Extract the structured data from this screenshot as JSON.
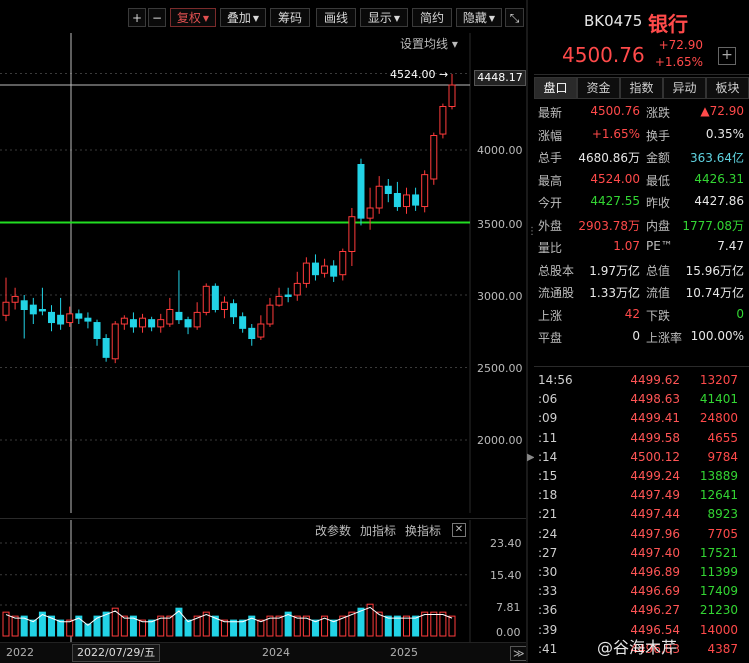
{
  "toolbar": {
    "plus": "+",
    "minus": "−",
    "fuquan": "复权",
    "diejia": "叠加",
    "chouma": "筹码",
    "huaxian": "画线",
    "xianshi": "显示",
    "jianyue": "简约",
    "yincang": "隐藏",
    "fullscreen": "⤡"
  },
  "chart": {
    "setting_label": "设置均线 ▾",
    "max_label": "4524.00",
    "cursor_value": "4448.17",
    "yticks": [
      "4000.00",
      "3500.00",
      "3000.00",
      "2500.00",
      "2000.00"
    ],
    "yvalues": [
      4000,
      3500,
      3000,
      2500,
      2000
    ],
    "support_level": 3500,
    "price_top": 4524,
    "colors": {
      "up": "#ff3b3b",
      "down": "#22d3e6",
      "ma_support": "#22dd22"
    }
  },
  "chart_data": {
    "type": "candlestick",
    "x_labels": [
      "2022",
      "2024",
      "2025"
    ],
    "ylim": [
      1500,
      4600
    ],
    "candles": [
      [
        2860,
        2950,
        3120,
        2820
      ],
      [
        2950,
        2990,
        3050,
        2900
      ],
      [
        2960,
        2900,
        3000,
        2700
      ],
      [
        2930,
        2870,
        2980,
        2800
      ],
      [
        2900,
        2890,
        3050,
        2860
      ],
      [
        2880,
        2810,
        2930,
        2750
      ],
      [
        2860,
        2800,
        2980,
        2760
      ],
      [
        2810,
        2870,
        2920,
        2780
      ],
      [
        2870,
        2840,
        2900,
        2800
      ],
      [
        2840,
        2820,
        2880,
        2770
      ],
      [
        2810,
        2700,
        2830,
        2650
      ],
      [
        2700,
        2570,
        2730,
        2540
      ],
      [
        2560,
        2800,
        2820,
        2530
      ],
      [
        2800,
        2840,
        2860,
        2760
      ],
      [
        2830,
        2780,
        2880,
        2740
      ],
      [
        2780,
        2840,
        2870,
        2740
      ],
      [
        2830,
        2780,
        2850,
        2750
      ],
      [
        2780,
        2830,
        2870,
        2740
      ],
      [
        2800,
        2900,
        2980,
        2780
      ],
      [
        2880,
        2830,
        3170,
        2800
      ],
      [
        2830,
        2780,
        2850,
        2730
      ],
      [
        2780,
        2880,
        2950,
        2760
      ],
      [
        2880,
        3060,
        3080,
        2860
      ],
      [
        3060,
        2900,
        3080,
        2880
      ],
      [
        2900,
        2950,
        2990,
        2840
      ],
      [
        2940,
        2850,
        2970,
        2800
      ],
      [
        2850,
        2770,
        2880,
        2740
      ],
      [
        2770,
        2700,
        2800,
        2650
      ],
      [
        2710,
        2800,
        2860,
        2690
      ],
      [
        2800,
        2930,
        2980,
        2780
      ],
      [
        2930,
        2990,
        3050,
        2920
      ],
      [
        3000,
        2990,
        3050,
        2950
      ],
      [
        3000,
        3080,
        3160,
        2960
      ],
      [
        3080,
        3220,
        3260,
        3050
      ],
      [
        3220,
        3140,
        3280,
        3100
      ],
      [
        3150,
        3200,
        3250,
        3120
      ],
      [
        3200,
        3130,
        3240,
        3090
      ],
      [
        3140,
        3300,
        3320,
        3100
      ],
      [
        3300,
        3540,
        3600,
        3200
      ],
      [
        3900,
        3530,
        3940,
        3480
      ],
      [
        3530,
        3600,
        3740,
        3450
      ],
      [
        3600,
        3750,
        3820,
        3560
      ],
      [
        3750,
        3700,
        3800,
        3640
      ],
      [
        3700,
        3610,
        3780,
        3580
      ],
      [
        3610,
        3690,
        3740,
        3560
      ],
      [
        3690,
        3620,
        3740,
        3580
      ],
      [
        3610,
        3830,
        3860,
        3570
      ],
      [
        3800,
        4100,
        4120,
        3760
      ],
      [
        4110,
        4300,
        4320,
        4080
      ],
      [
        4300,
        4448,
        4524,
        4280
      ]
    ],
    "volume_ylim": [
      0,
      23.4
    ],
    "volume_ticks": [
      "23.40",
      "15.40",
      "7.81",
      "0.00"
    ],
    "volumes": [
      6,
      5,
      5,
      4,
      6,
      5,
      4,
      4,
      5,
      3,
      5,
      6,
      7,
      5,
      5,
      4,
      4,
      5,
      5,
      7,
      4,
      5,
      6,
      5,
      4,
      4,
      4,
      5,
      4,
      5,
      5,
      6,
      5,
      5,
      4,
      5,
      4,
      5,
      6,
      7,
      8,
      6,
      5,
      5,
      5,
      5,
      6,
      6,
      6,
      5
    ]
  },
  "vol_panel": {
    "gaicanshu": "改参数",
    "jiazhibiao": "加指标",
    "huanzhibiao": "换指标",
    "close": "✕"
  },
  "date_axis": {
    "y2022": "2022",
    "cursor": "2022/07/29/五",
    "y2024": "2024",
    "y2025": "2025",
    "nav": "≫"
  },
  "right": {
    "code": "BK0475",
    "name": "银行",
    "price": "4500.76",
    "chg": "+72.90",
    "chgp": "+1.65%",
    "add": "+",
    "tabs": [
      "盘口",
      "资金",
      "指数",
      "异动",
      "板块"
    ],
    "quotes": [
      {
        "l1": "最新",
        "v1": "4500.76",
        "c1": "red",
        "l2": "涨跌",
        "v2": "▲72.90",
        "c2": "red"
      },
      {
        "l1": "涨幅",
        "v1": "+1.65%",
        "c1": "red",
        "l2": "换手",
        "v2": "0.35%",
        "c2": "white"
      },
      {
        "l1": "总手",
        "v1": "4680.86万",
        "c1": "white",
        "l2": "金额",
        "v2": "363.64亿",
        "c2": "cyan"
      },
      {
        "l1": "最高",
        "v1": "4524.00",
        "c1": "red",
        "l2": "最低",
        "v2": "4426.31",
        "c2": "green"
      },
      {
        "l1": "今开",
        "v1": "4427.55",
        "c1": "green",
        "l2": "昨收",
        "v2": "4427.86",
        "c2": "white"
      },
      {
        "l1": "外盘",
        "v1": "2903.78万",
        "c1": "red",
        "l2": "内盘",
        "v2": "1777.08万",
        "c2": "green"
      },
      {
        "l1": "量比",
        "v1": "1.07",
        "c1": "red",
        "l2": "PE™",
        "v2": "7.47",
        "c2": "white"
      },
      {
        "l1": "总股本",
        "v1": "1.97万亿",
        "c1": "white",
        "l2": "总值",
        "v2": "15.96万亿",
        "c2": "white"
      },
      {
        "l1": "流通股",
        "v1": "1.33万亿",
        "c1": "white",
        "l2": "流值",
        "v2": "10.74万亿",
        "c2": "white"
      },
      {
        "l1": "上涨",
        "v1": "42",
        "c1": "red",
        "l2": "下跌",
        "v2": "0",
        "c2": "green"
      },
      {
        "l1": "平盘",
        "v1": "0",
        "c1": "white",
        "l2": "上涨率",
        "v2": "100.00%",
        "c2": "white"
      }
    ],
    "ticks": [
      {
        "t": "14:56",
        "p": "4499.62",
        "v": "13207",
        "c": "red"
      },
      {
        "t": ":06",
        "p": "4498.63",
        "v": "41401",
        "c": "green"
      },
      {
        "t": ":09",
        "p": "4499.41",
        "v": "24800",
        "c": "red"
      },
      {
        "t": ":11",
        "p": "4499.58",
        "v": "4655",
        "c": "red"
      },
      {
        "t": ":14",
        "p": "4500.12",
        "v": "9784",
        "c": "red"
      },
      {
        "t": ":15",
        "p": "4499.24",
        "v": "13889",
        "c": "green"
      },
      {
        "t": ":18",
        "p": "4497.49",
        "v": "12641",
        "c": "green"
      },
      {
        "t": ":21",
        "p": "4497.44",
        "v": "8923",
        "c": "green"
      },
      {
        "t": ":24",
        "p": "4497.96",
        "v": "7705",
        "c": "red"
      },
      {
        "t": ":27",
        "p": "4497.40",
        "v": "17521",
        "c": "green"
      },
      {
        "t": ":30",
        "p": "4496.89",
        "v": "11399",
        "c": "green"
      },
      {
        "t": ":33",
        "p": "4496.69",
        "v": "17409",
        "c": "green"
      },
      {
        "t": ":36",
        "p": "4496.27",
        "v": "21230",
        "c": "green"
      },
      {
        "t": ":39",
        "p": "4496.54",
        "v": "14000",
        "c": "red"
      },
      {
        "t": ":41",
        "p": "4496.83",
        "v": "4387",
        "c": "red"
      }
    ]
  },
  "watermark": "@谷海木芹"
}
